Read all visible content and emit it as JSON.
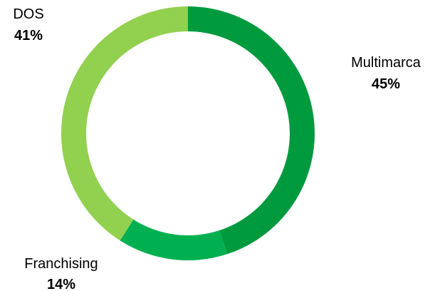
{
  "chart_data": {
    "type": "pie",
    "variant": "donut",
    "categories": [
      "Multimarca",
      "Franchising",
      "DOS"
    ],
    "values": [
      45,
      14,
      41
    ],
    "value_labels": [
      "45%",
      "14%",
      "41%"
    ],
    "colors": [
      "#009A3E",
      "#00B050",
      "#92D050"
    ],
    "start_angle_deg": 0,
    "direction": "clockwise"
  }
}
